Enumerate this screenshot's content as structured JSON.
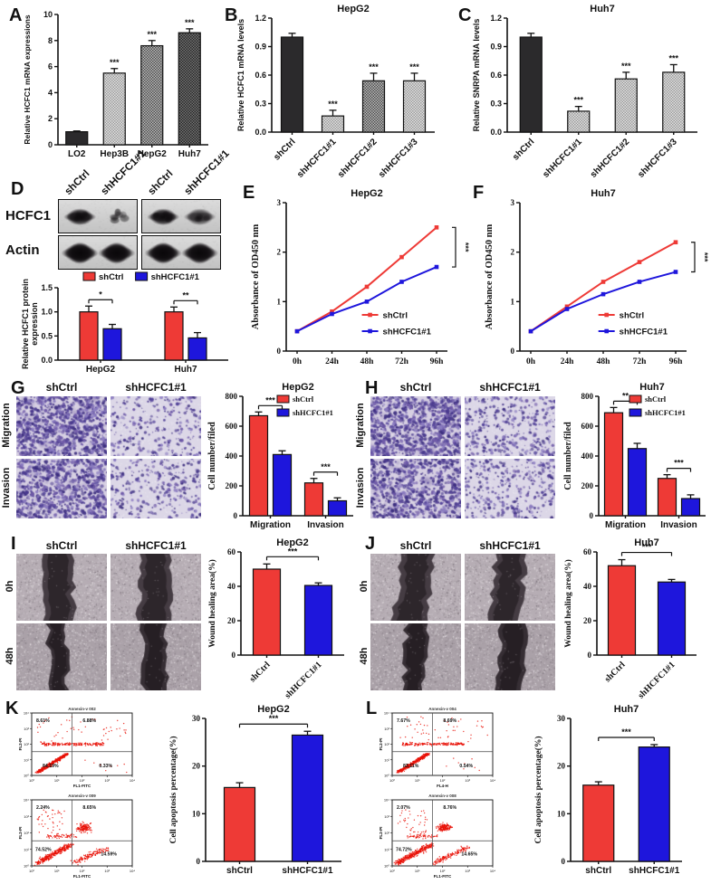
{
  "colors": {
    "red": "#ee3a36",
    "blue": "#1e16dc",
    "bar_dark": "#2b2a2c",
    "flow_dot": "#e81108"
  },
  "panels": {
    "A": {
      "label": "A"
    },
    "B": {
      "label": "B"
    },
    "C": {
      "label": "C"
    },
    "D": {
      "label": "D",
      "blot_rows": [
        "HCFC1",
        "Actin"
      ],
      "lanes": [
        "shCtrl",
        "shHCFC1#1",
        "shCtrl",
        "shHCFC1#1"
      ]
    },
    "E": {
      "label": "E"
    },
    "F": {
      "label": "F"
    },
    "G": {
      "label": "G",
      "cols": [
        "shCtrl",
        "shHCFC1#1"
      ],
      "rows": [
        "Migration",
        "Invasion"
      ]
    },
    "H": {
      "label": "H",
      "cols": [
        "shCtrl",
        "shHCFC1#1"
      ],
      "rows": [
        "Migration",
        "Invasion"
      ]
    },
    "I": {
      "label": "I",
      "cols": [
        "shCtrl",
        "shHCFC1#1"
      ],
      "rows": [
        "0h",
        "48h"
      ]
    },
    "J": {
      "label": "J",
      "cols": [
        "shCtrl",
        "shHCFC1#1"
      ],
      "rows": [
        "0h",
        "48h"
      ]
    },
    "K": {
      "label": "K"
    },
    "L": {
      "label": "L"
    }
  },
  "flow": {
    "K": [
      {
        "name": "Annexin-v 002",
        "ul": "8.61%",
        "ur": "6.88%",
        "ll": "84.19%",
        "lr": "0.33%",
        "xlabel": "FL1-FITC",
        "ylabel": "FL2-PI"
      },
      {
        "name": "Annexin-v 009",
        "ul": "2.24%",
        "ur": "8.65%",
        "ll": "74.52%",
        "lr": "14.59%",
        "xlabel": "FL1-FITC",
        "ylabel": "FL2-PI"
      }
    ],
    "L": [
      {
        "name": "Annexin-v 004",
        "ul": "7.67%",
        "ur": "8.69%",
        "ll": "83.11%",
        "lr": "0.54%",
        "xlabel": "FL4-H",
        "ylabel": "FL2-PI"
      },
      {
        "name": "Annexin-v 008",
        "ul": "2.07%",
        "ur": "8.76%",
        "ll": "74.72%",
        "lr": "14.65%",
        "xlabel": "FL1-FITC",
        "ylabel": "FL2-PI"
      }
    ]
  },
  "chart_data": [
    {
      "id": "A",
      "type": "bar",
      "title": "",
      "ylabel": "Relative HCFC1 mRNA expressions",
      "categories": [
        "LO2",
        "Hep3B",
        "HepG2",
        "Huh7"
      ],
      "values": [
        1.0,
        5.5,
        7.6,
        8.6
      ],
      "errors": [
        0.06,
        0.35,
        0.4,
        0.3
      ],
      "sig": [
        "",
        "***",
        "***",
        "***"
      ],
      "ylim": [
        0,
        10
      ],
      "yticks": [
        0,
        2,
        4,
        6,
        8,
        10
      ],
      "ydec": 0,
      "bar_styles": [
        "solid-dark",
        "dots-light",
        "dots-mid",
        "dots-dark"
      ]
    },
    {
      "id": "B",
      "type": "bar",
      "title": "HepG2",
      "ylabel": "Relative HCFC1 mRNA levels",
      "categories": [
        "shCtrl",
        "shHCFC1#1",
        "shHCFC1#2",
        "shHCFC1#3"
      ],
      "values": [
        1.0,
        0.17,
        0.54,
        0.54
      ],
      "errors": [
        0.04,
        0.06,
        0.08,
        0.08
      ],
      "sig": [
        "",
        "***",
        "***",
        "***"
      ],
      "ylim": [
        0,
        1.2
      ],
      "yticks": [
        0,
        0.3,
        0.6,
        0.9,
        1.2
      ],
      "ydec": 1,
      "bar_styles": [
        "solid-dark",
        "dots-light",
        "dots-mid",
        "dots-light"
      ]
    },
    {
      "id": "C",
      "type": "bar",
      "title": "Huh7",
      "ylabel": "Relative SNRPA mRNA levels",
      "categories": [
        "shCtrl",
        "shHCFC1#1",
        "shHCFC1#2",
        "shHCFC1#3"
      ],
      "values": [
        1.0,
        0.22,
        0.56,
        0.63
      ],
      "errors": [
        0.04,
        0.05,
        0.07,
        0.08
      ],
      "sig": [
        "",
        "***",
        "***",
        "***"
      ],
      "ylim": [
        0,
        1.2
      ],
      "yticks": [
        0,
        0.3,
        0.6,
        0.9,
        1.2
      ],
      "ydec": 1,
      "bar_styles": [
        "solid-dark",
        "dots-light",
        "dots-light",
        "dots-light"
      ]
    },
    {
      "id": "D",
      "type": "grouped-bar",
      "title": "",
      "ylabel": "Relative HCFC1 protein expression",
      "categories": [
        "HepG2",
        "Huh7"
      ],
      "series": [
        {
          "name": "shCtrl",
          "color": "red",
          "values": [
            1.0,
            1.0
          ],
          "errors": [
            0.12,
            0.1
          ]
        },
        {
          "name": "shHCFC1#1",
          "color": "blue",
          "values": [
            0.65,
            0.46
          ],
          "errors": [
            0.09,
            0.11
          ]
        }
      ],
      "sig": [
        "*",
        "**"
      ],
      "ylim": [
        0,
        1.5
      ],
      "yticks": [
        0,
        0.5,
        1.0,
        1.5
      ],
      "ydec": 1,
      "legend": "top"
    },
    {
      "id": "E",
      "type": "line",
      "title": "HepG2",
      "ylabel": "Absorbance of OD450 nm",
      "x": [
        "0h",
        "24h",
        "48h",
        "72h",
        "96h"
      ],
      "series": [
        {
          "name": "shCtrl",
          "color": "red",
          "values": [
            0.4,
            0.8,
            1.3,
            1.9,
            2.5
          ]
        },
        {
          "name": "shHCFC1#1",
          "color": "blue",
          "values": [
            0.4,
            0.75,
            1.0,
            1.4,
            1.7
          ]
        }
      ],
      "ylim": [
        0,
        3
      ],
      "yticks": [
        0,
        1,
        2,
        3
      ],
      "ydec": 0,
      "sig": "***"
    },
    {
      "id": "F",
      "type": "line",
      "title": "Huh7",
      "ylabel": "Absorbance of OD450 nm",
      "x": [
        "0h",
        "24h",
        "48h",
        "72h",
        "96h"
      ],
      "series": [
        {
          "name": "shCtrl",
          "color": "red",
          "values": [
            0.4,
            0.9,
            1.4,
            1.8,
            2.2
          ]
        },
        {
          "name": "shHCFC1#1",
          "color": "blue",
          "values": [
            0.4,
            0.85,
            1.15,
            1.4,
            1.6
          ]
        }
      ],
      "ylim": [
        0,
        3
      ],
      "yticks": [
        0,
        1,
        2,
        3
      ],
      "ydec": 0,
      "sig": "***"
    },
    {
      "id": "G",
      "type": "grouped-bar",
      "title": "HepG2",
      "ylabel": "Cell number/filed",
      "categories": [
        "Migration",
        "Invasion"
      ],
      "series": [
        {
          "name": "shCtrl",
          "color": "red",
          "values": [
            670,
            220
          ],
          "errors": [
            25,
            30
          ]
        },
        {
          "name": "shHCFC1#1",
          "color": "blue",
          "values": [
            410,
            100
          ],
          "errors": [
            25,
            20
          ]
        }
      ],
      "sig": [
        "***",
        "***"
      ],
      "ylim": [
        0,
        800
      ],
      "yticks": [
        0,
        200,
        400,
        600,
        800
      ],
      "ydec": 0,
      "legend": "tr"
    },
    {
      "id": "H",
      "type": "grouped-bar",
      "title": "Huh7",
      "ylabel": "Cell number/filed",
      "categories": [
        "Migration",
        "Invasion"
      ],
      "series": [
        {
          "name": "shCtrl",
          "color": "red",
          "values": [
            690,
            250
          ],
          "errors": [
            35,
            25
          ]
        },
        {
          "name": "shHCFC1#1",
          "color": "blue",
          "values": [
            450,
            115
          ],
          "errors": [
            35,
            25
          ]
        }
      ],
      "sig": [
        "**",
        "***"
      ],
      "ylim": [
        0,
        800
      ],
      "yticks": [
        0,
        200,
        400,
        600,
        800
      ],
      "ydec": 0,
      "legend": "tr"
    },
    {
      "id": "I",
      "type": "bar",
      "title": "HepG2",
      "ylabel": "Wound healing area(%)",
      "categories": [
        "shCtrl",
        "shHCFC1#1"
      ],
      "values": [
        50,
        40.5
      ],
      "errors": [
        3,
        1.5
      ],
      "sig": [
        "",
        ""
      ],
      "pair_sig": "***",
      "ylim": [
        0,
        60
      ],
      "yticks": [
        0,
        20,
        40,
        60
      ],
      "ydec": 0,
      "bar_styles": [
        "red",
        "blue"
      ]
    },
    {
      "id": "J",
      "type": "bar",
      "title": "Huh7",
      "ylabel": "Wound healing area(%)",
      "categories": [
        "shCtrl",
        "shHCFC1#1"
      ],
      "values": [
        52,
        42.5
      ],
      "errors": [
        3.5,
        1.5
      ],
      "sig": [
        "",
        ""
      ],
      "pair_sig": "***",
      "ylim": [
        0,
        60
      ],
      "yticks": [
        0,
        20,
        40,
        60
      ],
      "ydec": 0,
      "bar_styles": [
        "red",
        "blue"
      ]
    },
    {
      "id": "K",
      "type": "bar",
      "title": "HepG2",
      "ylabel": "Cell apoptosis percentage(%)",
      "categories": [
        "shCtrl",
        "shHCFC1#1"
      ],
      "values": [
        15.5,
        26.5
      ],
      "errors": [
        1,
        0.8
      ],
      "sig": [
        "",
        ""
      ],
      "pair_sig": "***",
      "ylim": [
        0,
        30
      ],
      "yticks": [
        0,
        10,
        20,
        30
      ],
      "ydec": 0,
      "bar_styles": [
        "red",
        "blue"
      ]
    },
    {
      "id": "L",
      "type": "bar",
      "title": "Huh7",
      "ylabel": "Cell apoptosis percentage(%)",
      "categories": [
        "shCtrl",
        "shHCFC1#1"
      ],
      "values": [
        16,
        24
      ],
      "errors": [
        0.7,
        0.5
      ],
      "sig": [
        "",
        ""
      ],
      "pair_sig": "***",
      "ylim": [
        0,
        30
      ],
      "yticks": [
        0,
        10,
        20,
        30
      ],
      "ydec": 0,
      "bar_styles": [
        "red",
        "blue"
      ]
    }
  ]
}
